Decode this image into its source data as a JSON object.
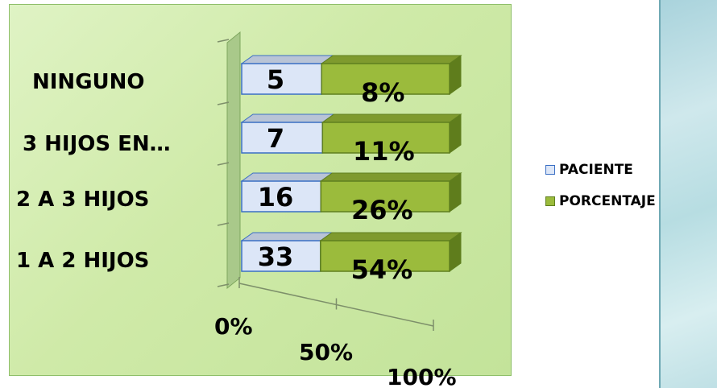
{
  "chart_data": {
    "type": "bar",
    "orientation": "horizontal",
    "stacking": "percent",
    "three_d": true,
    "categories": [
      "1 A 2 HIJOS",
      "2 A 3 HIJOS",
      "3 HIJOS EN…",
      "NINGUNO"
    ],
    "series": [
      {
        "name": "PACIENTE",
        "values": [
          33,
          16,
          7,
          5
        ],
        "labels": [
          "33",
          "16",
          "7",
          "5"
        ],
        "color": "#dce6f7"
      },
      {
        "name": "PORCENTAJE",
        "values": [
          54,
          26,
          11,
          8
        ],
        "labels": [
          "54%",
          "26%",
          "11%",
          "8%"
        ],
        "color": "#9bbb3c"
      }
    ],
    "xticks": [
      "0%",
      "50%",
      "100%"
    ],
    "xlim": [
      0,
      100
    ],
    "legend_position": "right",
    "grid": false
  },
  "colors": {
    "paciente_fill": "#dce6f7",
    "paciente_edge": "#3a6fc4",
    "porcentaje_fill": "#9bbb3c",
    "porcentaje_edge": "#5f7f1e",
    "plot_background": "#cfeaa8"
  }
}
